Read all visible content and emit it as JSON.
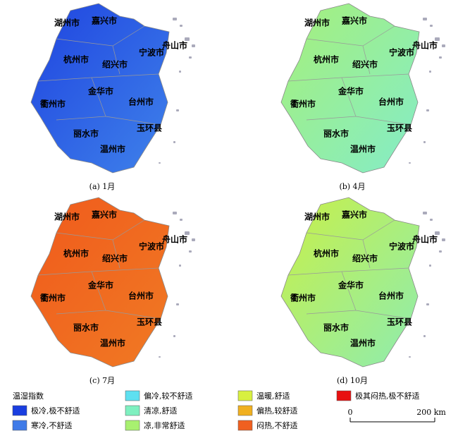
{
  "cities": [
    {
      "name": "湖州市",
      "pos": [
        55,
        28
      ]
    },
    {
      "name": "嘉兴市",
      "pos": [
        108,
        25
      ]
    },
    {
      "name": "舟山市",
      "pos": [
        208,
        60
      ]
    },
    {
      "name": "杭州市",
      "pos": [
        68,
        80
      ]
    },
    {
      "name": "宁波市",
      "pos": [
        175,
        70
      ]
    },
    {
      "name": "绍兴市",
      "pos": [
        123,
        87
      ]
    },
    {
      "name": "金华市",
      "pos": [
        103,
        125
      ]
    },
    {
      "name": "衢州市",
      "pos": [
        35,
        143
      ]
    },
    {
      "name": "台州市",
      "pos": [
        160,
        140
      ]
    },
    {
      "name": "丽水市",
      "pos": [
        82,
        185
      ]
    },
    {
      "name": "玉环县",
      "pos": [
        172,
        177
      ]
    },
    {
      "name": "温州市",
      "pos": [
        120,
        207
      ]
    }
  ],
  "panels": [
    {
      "caption": "(a) 1月",
      "colors": [
        "#1f44e0",
        "#3f82ea"
      ]
    },
    {
      "caption": "(b) 4月",
      "colors": [
        "#a6f07a",
        "#84ecc8"
      ]
    },
    {
      "caption": "(c) 7月",
      "colors": [
        "#f05a1c",
        "#f07a24"
      ]
    },
    {
      "caption": "(d) 10月",
      "colors": [
        "#c8f048",
        "#8eecb0"
      ]
    }
  ],
  "legend": {
    "title": "温湿指数",
    "entries": [
      {
        "name": "极冷,极不舒适",
        "color": "#1a3ee0"
      },
      {
        "name": "寒冷,不舒适",
        "color": "#3f7be8"
      },
      {
        "name": "偏冷,较不舒适",
        "color": "#5ee0f0"
      },
      {
        "name": "清凉,舒适",
        "color": "#7ff0c0"
      },
      {
        "name": "凉,非常舒适",
        "color": "#a8f070"
      },
      {
        "name": "温暖,舒适",
        "color": "#d8f040"
      },
      {
        "name": "偏热,较舒适",
        "color": "#f0b020"
      },
      {
        "name": "闷热,不舒适",
        "color": "#f06020"
      },
      {
        "name": "极其闷热,极不舒适",
        "color": "#e81010"
      }
    ]
  },
  "scale_labels": [
    "0",
    "200 km"
  ]
}
